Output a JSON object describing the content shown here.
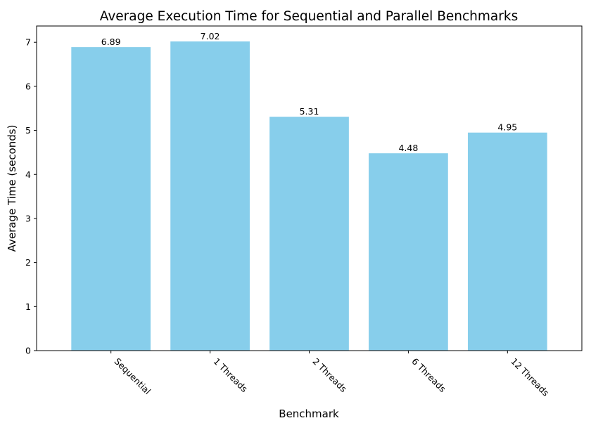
{
  "chart_data": {
    "type": "bar",
    "title": "Average Execution Time for Sequential and Parallel Benchmarks",
    "xlabel": "Benchmark",
    "ylabel": "Average Time (seconds)",
    "categories": [
      "Sequential",
      "1 Threads",
      "2 Threads",
      "6 Threads",
      "12 Threads"
    ],
    "values": [
      6.89,
      7.02,
      5.31,
      4.48,
      4.95
    ],
    "value_labels": [
      "6.89",
      "7.02",
      "5.31",
      "4.48",
      "4.95"
    ],
    "ylim": [
      0,
      7.37
    ],
    "yticks": [
      0,
      1,
      2,
      3,
      4,
      5,
      6,
      7
    ],
    "bar_color": "#87ceeb",
    "grid": false,
    "legend": "none",
    "xtick_rotation": "-45 degrees"
  }
}
